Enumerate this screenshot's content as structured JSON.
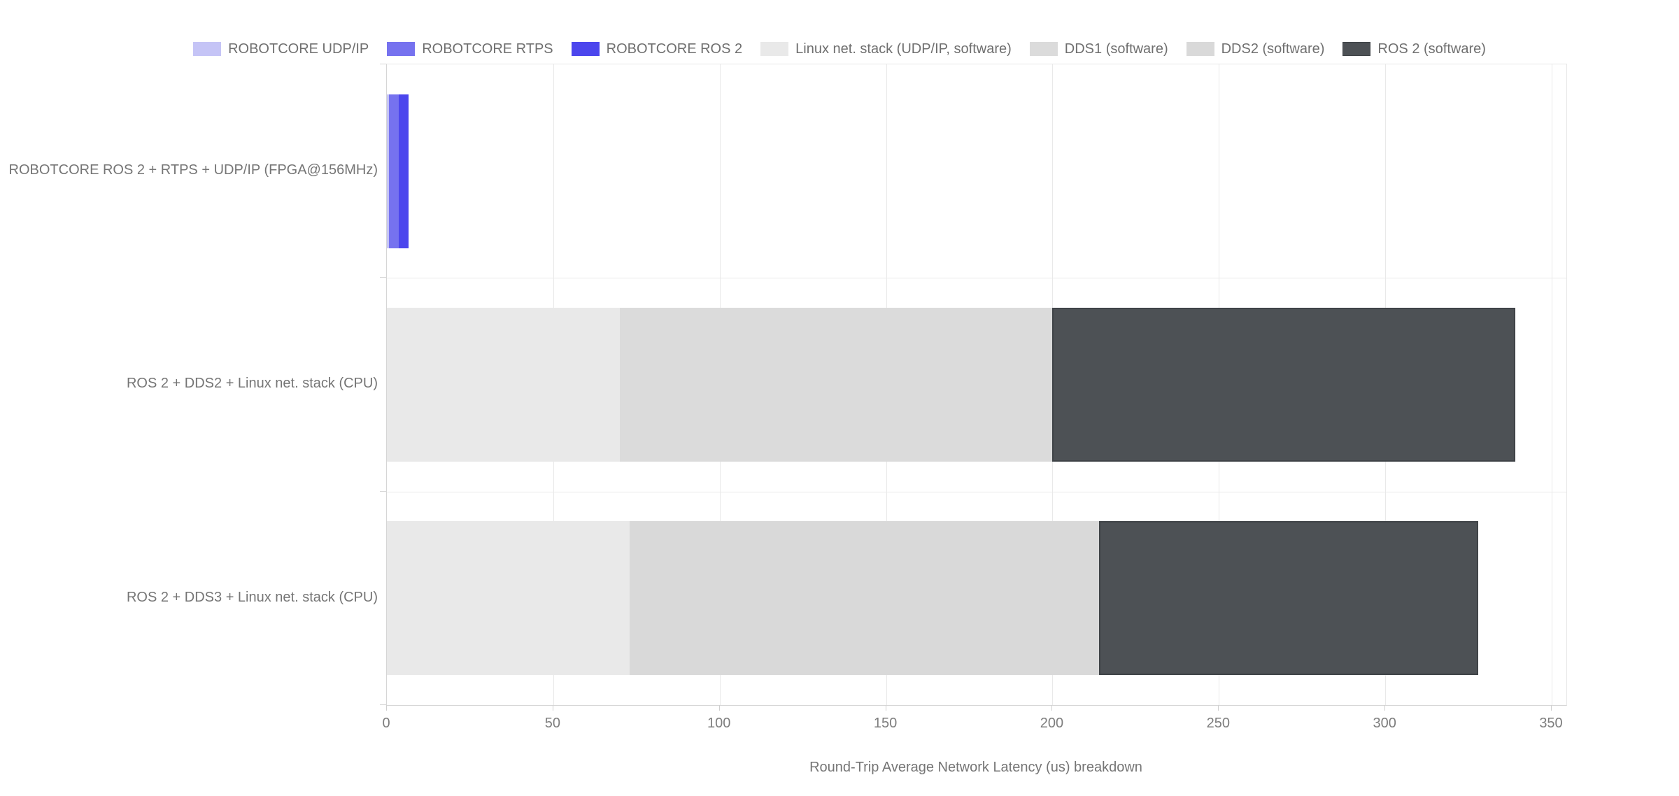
{
  "page": {
    "background": "#ffffff",
    "text_color": "#757575",
    "gridline_color": "#e9e9e9",
    "axis_line_color": "#d6d6d6"
  },
  "legend": {
    "position": "top",
    "items": [
      {
        "label": "ROBOTCORE UDP/IP",
        "color": "#c5c4f6"
      },
      {
        "label": "ROBOTCORE RTPS",
        "color": "#7672ef"
      },
      {
        "label": "ROBOTCORE ROS 2",
        "color": "#4c46ed"
      },
      {
        "label": "Linux net. stack (UDP/IP, software)",
        "color": "#e9e9e9"
      },
      {
        "label": "DDS1 (software)",
        "color": "#dbdbdb"
      },
      {
        "label": "DDS2 (software)",
        "color": "#d9d9d9"
      },
      {
        "label": "ROS 2 (software)",
        "color": "#4d5155",
        "border": "#3f4347"
      }
    ]
  },
  "chart_data": {
    "type": "bar",
    "orientation": "horizontal",
    "stacked": true,
    "units": "us",
    "xlabel": "Round-Trip Average Network Latency (us) breakdown",
    "ylabel": "",
    "xlim": [
      0,
      354
    ],
    "x_ticks": [
      0,
      50,
      100,
      150,
      200,
      250,
      300,
      350
    ],
    "grid": true,
    "legend_position": "top",
    "categories": [
      "ROBOTCORE ROS 2 + RTPS + UDP/IP (FPGA@156MHz)",
      "ROS 2 + DDS2 + Linux net. stack (CPU)",
      "ROS 2 + DDS3 + Linux net. stack (CPU)"
    ],
    "series": [
      {
        "name": "ROBOTCORE UDP/IP",
        "color": "#c5c4f6",
        "values": [
          0.6,
          0,
          0
        ]
      },
      {
        "name": "ROBOTCORE RTPS",
        "color": "#7672ef",
        "values": [
          2.9,
          0,
          0
        ]
      },
      {
        "name": "ROBOTCORE ROS 2",
        "color": "#4c46ed",
        "values": [
          3.0,
          0,
          0
        ]
      },
      {
        "name": "Linux net. stack (UDP/IP, software)",
        "color": "#e9e9e9",
        "values": [
          0,
          70,
          73
        ]
      },
      {
        "name": "DDS1 (software)",
        "color": "#dbdbdb",
        "values": [
          0,
          130,
          0
        ]
      },
      {
        "name": "DDS2 (software)",
        "color": "#d9d9d9",
        "values": [
          0,
          0,
          141
        ]
      },
      {
        "name": "ROS 2 (software)",
        "color": "#4d5155",
        "border": "#3f4347",
        "values": [
          0,
          139,
          114
        ]
      }
    ]
  }
}
